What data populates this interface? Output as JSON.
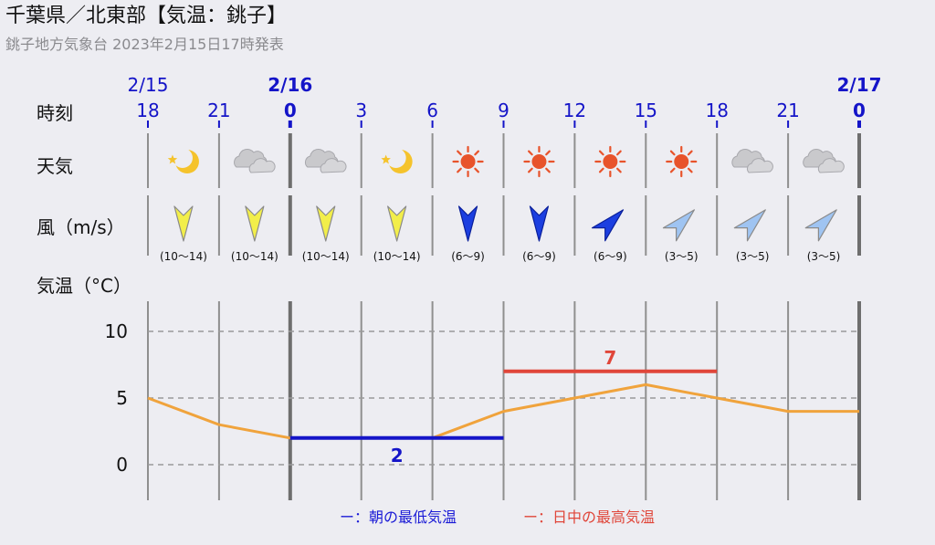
{
  "header": {
    "title": "千葉県／北東部【気温：銚子】",
    "subtitle": "銚子地方気象台 2023年2月15日17時発表"
  },
  "row_labels": {
    "time": "時刻",
    "weather": "天気",
    "wind": "風（m/s）",
    "temperature": "気温（°C）"
  },
  "legend": {
    "min_label": "ー：朝の最低気温",
    "max_label": "ー：日中の最高気温"
  },
  "colors": {
    "line": "#f0a33c",
    "min_bar": "#1414c8",
    "max_bar": "#e0463a",
    "time_blue": "#1414c8",
    "wind_strong": "#f2ee4a",
    "wind_moderate": "#1c3fe0",
    "wind_light": "#9fc4f2"
  },
  "chart_data": {
    "type": "line",
    "dates": [
      {
        "label": "2/15",
        "index": 0,
        "bold": false
      },
      {
        "label": "2/16",
        "index": 2,
        "bold": true
      },
      {
        "label": "2/17",
        "index": 10,
        "bold": true
      }
    ],
    "hours": [
      "18",
      "21",
      "0",
      "3",
      "6",
      "9",
      "12",
      "15",
      "18",
      "21",
      "0"
    ],
    "bold_hours": [
      2,
      10
    ],
    "weather": [
      "moon-partly",
      "cloudy",
      "cloudy",
      "moon-partly",
      "sunny",
      "sunny",
      "sunny",
      "sunny",
      "cloudy",
      "cloudy"
    ],
    "wind": [
      {
        "range": "(10～14)",
        "direction": "N",
        "strength": "strong"
      },
      {
        "range": "(10～14)",
        "direction": "N",
        "strength": "strong"
      },
      {
        "range": "(10～14)",
        "direction": "N",
        "strength": "strong"
      },
      {
        "range": "(10～14)",
        "direction": "N",
        "strength": "strong"
      },
      {
        "range": "(6～9)",
        "direction": "N",
        "strength": "moderate"
      },
      {
        "range": "(6～9)",
        "direction": "N",
        "strength": "moderate"
      },
      {
        "range": "(6～9)",
        "direction": "NE",
        "strength": "moderate"
      },
      {
        "range": "(3～5)",
        "direction": "NE",
        "strength": "light"
      },
      {
        "range": "(3～5)",
        "direction": "NE",
        "strength": "light"
      },
      {
        "range": "(3～5)",
        "direction": "NE",
        "strength": "light"
      }
    ],
    "temperature": [
      5,
      3,
      2,
      2,
      2,
      4,
      5,
      6,
      5,
      4,
      4
    ],
    "min_temp": {
      "value": 2,
      "from_index": 2,
      "to_index": 5
    },
    "max_temp": {
      "value": 7,
      "from_index": 5,
      "to_index": 8
    },
    "y_ticks": [
      10,
      5,
      0
    ],
    "ylim": [
      -2.5,
      12.5
    ],
    "grid": true
  }
}
